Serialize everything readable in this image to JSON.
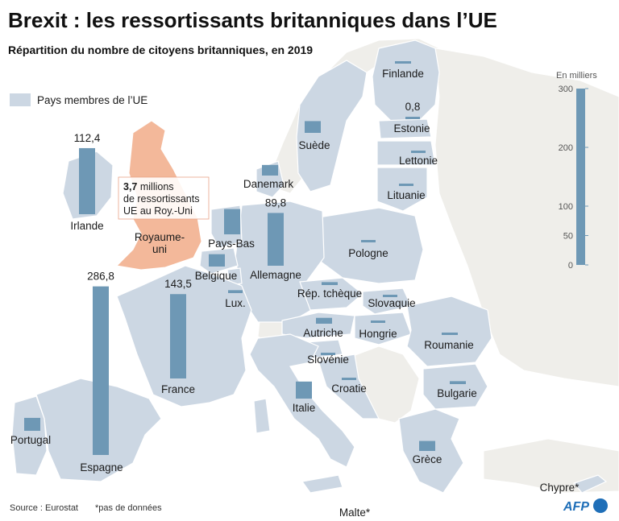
{
  "title": "Brexit : les ressortissants britanniques dans l’UE",
  "subtitle": "Répartition du nombre de citoyens britanniques, en 2019",
  "legend": {
    "eu_members": "Pays membres de l’UE"
  },
  "uk_callout": {
    "value": "3,7",
    "line1_rest": " millions",
    "line2": "de ressortissants",
    "line3": "UE au Roy.-Uni"
  },
  "scale": {
    "unit": "En milliers",
    "ticks": [
      300,
      200,
      100,
      50,
      0
    ]
  },
  "source": "Source : Eurostat",
  "note": "*pas de données",
  "logo": "AFP",
  "colors": {
    "eu": "#ccd7e3",
    "non_eu": "#efeeea",
    "sea": "#ffffff",
    "uk": "#f3b89a",
    "bar": "#6e98b5"
  },
  "countries": [
    {
      "id": "irlande",
      "name": "Irlande",
      "value": 112.4,
      "value_label": "112,4"
    },
    {
      "id": "royaume-uni",
      "name": "Royaume-uni"
    },
    {
      "id": "pays-bas",
      "name": "Pays-Bas",
      "value": 43
    },
    {
      "id": "belgique",
      "name": "Belgique",
      "value": 21
    },
    {
      "id": "lux",
      "name": "Lux.",
      "value": 5
    },
    {
      "id": "danemark",
      "name": "Danemark",
      "value": 18
    },
    {
      "id": "allemagne",
      "name": "Allemagne",
      "value": 89.8,
      "value_label": "89,8"
    },
    {
      "id": "suede",
      "name": "Suède",
      "value": 20
    },
    {
      "id": "finlande",
      "name": "Finlande",
      "value": 4
    },
    {
      "id": "estonie",
      "name": "Estonie",
      "value": 0.8,
      "value_label": "0,8"
    },
    {
      "id": "lettonie",
      "name": "Lettonie",
      "value": 1
    },
    {
      "id": "lituanie",
      "name": "Lituanie",
      "value": 1
    },
    {
      "id": "pologne",
      "name": "Pologne",
      "value": 3
    },
    {
      "id": "rep-tcheque",
      "name": "Rép. tchèque",
      "value": 5
    },
    {
      "id": "slovaquie",
      "name": "Slovaquie",
      "value": 1
    },
    {
      "id": "autriche",
      "name": "Autriche",
      "value": 10
    },
    {
      "id": "hongrie",
      "name": "Hongrie",
      "value": 3
    },
    {
      "id": "slovenie",
      "name": "Slovénie",
      "value": 0.5
    },
    {
      "id": "croatie",
      "name": "Croatie",
      "value": 1
    },
    {
      "id": "roumanie",
      "name": "Roumanie",
      "value": 3
    },
    {
      "id": "bulgarie",
      "name": "Bulgarie",
      "value": 5
    },
    {
      "id": "france",
      "name": "France",
      "value": 143.5,
      "value_label": "143,5"
    },
    {
      "id": "espagne",
      "name": "Espagne",
      "value": 286.8,
      "value_label": "286,8"
    },
    {
      "id": "portugal",
      "name": "Portugal",
      "value": 22
    },
    {
      "id": "italie",
      "name": "Italie",
      "value": 29
    },
    {
      "id": "grece",
      "name": "Grèce",
      "value": 17
    },
    {
      "id": "chypre",
      "name": "Chypre*"
    },
    {
      "id": "malte",
      "name": "Malte*"
    }
  ]
}
